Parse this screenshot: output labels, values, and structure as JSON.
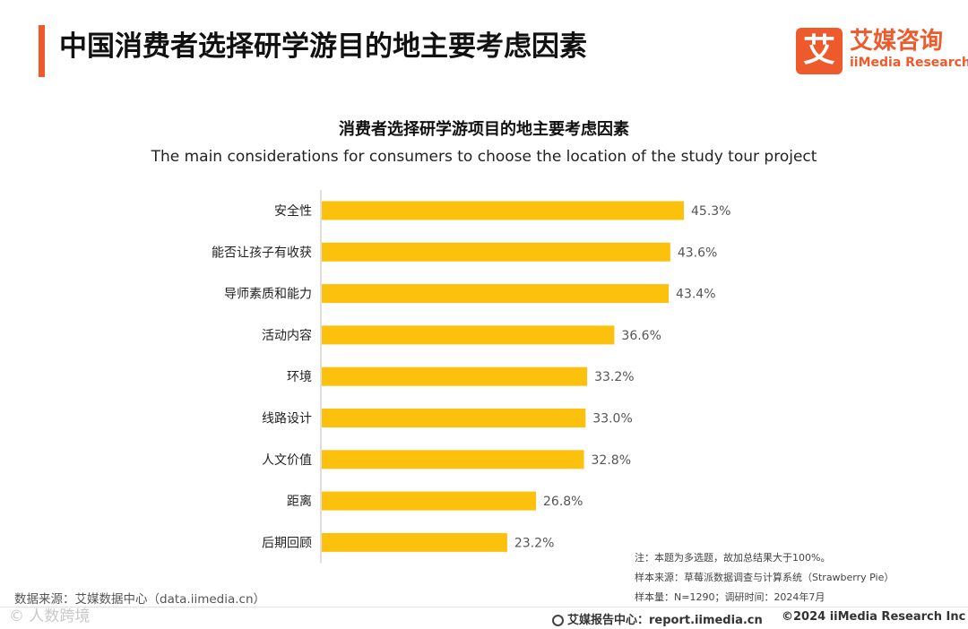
{
  "header": {
    "title": "中国消费者选择研学游目的地主要考虑因素",
    "logo_cn": "艾媒咨询",
    "logo_en": "iiMedia Research",
    "logo_mark": "艾"
  },
  "chart_data": {
    "type": "bar",
    "orientation": "horizontal",
    "title": "消费者选择研学游项目的地主要考虑因素",
    "subtitle": "The main considerations for consumers to choose the location of the study tour project",
    "categories": [
      "安全性",
      "能否让孩子有收获",
      "导师素质和能力",
      "活动内容",
      "环境",
      "线路设计",
      "人文价值",
      "距离",
      "后期回顾"
    ],
    "values": [
      45.3,
      43.6,
      43.4,
      36.6,
      33.2,
      33.0,
      32.8,
      26.8,
      23.2
    ],
    "labels": [
      "45.3%",
      "43.6%",
      "43.4%",
      "36.6%",
      "33.2%",
      "33.0%",
      "32.8%",
      "26.8%",
      "23.2%"
    ],
    "xlim": [
      0,
      51
    ],
    "grid": false,
    "bar_color": "#fcc10d"
  },
  "notes": [
    "注：本题为多选题，故加总结果大于100%。",
    "样本来源：草莓派数据调查与计算系统（Strawberry Pie）",
    "样本量：N=1290；调研时间：2024年7月"
  ],
  "source": "数据来源：艾媒数据中心（data.iimedia.cn）",
  "watermark": "© 人数跨境",
  "footer": {
    "report_center": "艾媒报告中心：report.iimedia.cn",
    "copyright": "©2024  iiMedia Research  Inc"
  },
  "colors": {
    "accent": "#ee5a2b",
    "bar": "#fcc10d"
  }
}
